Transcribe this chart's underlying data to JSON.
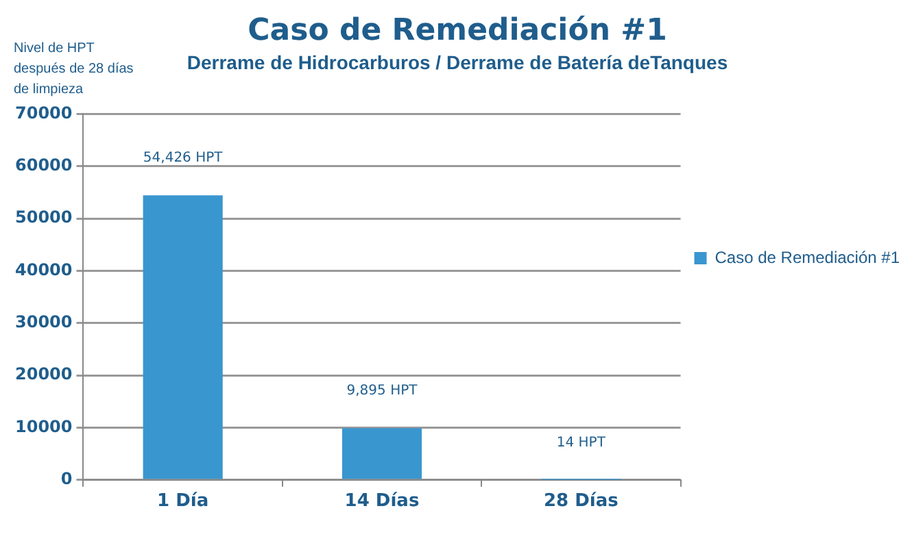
{
  "chart_data": {
    "type": "bar",
    "title": "Caso de Remediación #1",
    "subtitle": "Derrame de Hidrocarburos / Derrame de Batería deTanques",
    "ylabel": "Nivel de HPT después de 28 días de limpieza",
    "categories": [
      "1 Día",
      "14 Días",
      "28 Días"
    ],
    "series": [
      {
        "name": "Caso de Remediación #1",
        "color": "#3a96cf",
        "values": [
          54426,
          9895,
          14
        ],
        "value_labels": [
          "54,426 HPT",
          "9,895 HPT",
          "14 HPT"
        ]
      }
    ],
    "ylim": [
      0,
      70000
    ],
    "yticks": [
      0,
      10000,
      20000,
      30000,
      40000,
      50000,
      60000,
      70000
    ],
    "grid": "y",
    "legend": "right"
  }
}
